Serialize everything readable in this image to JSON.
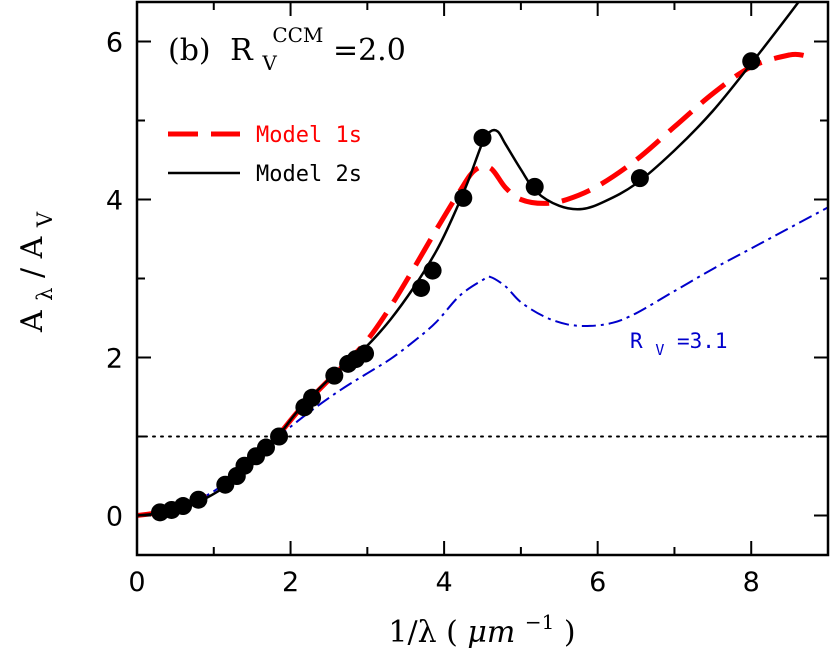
{
  "chart_data": {
    "type": "line",
    "panel_label": "(b)",
    "annotation": {
      "symbol": "R",
      "subscript": "V",
      "superscript": "CCM",
      "value_text": "=2.0"
    },
    "xlabel": {
      "prefix": "1/λ (",
      "unit_base": "μm",
      "unit_exp": "−1",
      "suffix": ")"
    },
    "ylabel": {
      "base1": "A",
      "sub1": "λ",
      "slash": "/",
      "base2": "A",
      "sub2": "V"
    },
    "xlim": [
      0,
      9
    ],
    "ylim": [
      -0.5,
      6.5
    ],
    "xticks": [
      0,
      2,
      4,
      6,
      8
    ],
    "yticks": [
      0,
      2,
      4,
      6
    ],
    "xtick_labels": [
      "0",
      "2",
      "4",
      "6",
      "8"
    ],
    "ytick_labels": [
      "0",
      "2",
      "4",
      "6"
    ],
    "grid": false,
    "legend_position": "upper-left",
    "reference_line": {
      "y": 1.0,
      "style": "dotted",
      "color": "#000000"
    },
    "series": [
      {
        "name": "Model 1s",
        "style": "dashed",
        "color": "#ff0000",
        "x": [
          0.0,
          0.3,
          0.6,
          0.9,
          1.2,
          1.5,
          1.8,
          2.1,
          2.4,
          2.7,
          3.0,
          3.3,
          3.6,
          3.9,
          4.2,
          4.4,
          4.6,
          4.8,
          5.0,
          5.3,
          5.6,
          6.0,
          6.5,
          7.0,
          7.5,
          8.0,
          8.5,
          8.7
        ],
        "y": [
          0.0,
          0.04,
          0.12,
          0.24,
          0.42,
          0.66,
          0.97,
          1.32,
          1.62,
          1.91,
          2.22,
          2.64,
          3.12,
          3.62,
          4.1,
          4.37,
          4.4,
          4.15,
          4.0,
          3.95,
          4.0,
          4.17,
          4.5,
          4.92,
          5.34,
          5.68,
          5.83,
          5.82
        ]
      },
      {
        "name": "Model 2s",
        "style": "solid",
        "color": "#000000",
        "x": [
          0.0,
          0.3,
          0.6,
          0.9,
          1.2,
          1.5,
          1.8,
          2.1,
          2.4,
          2.7,
          3.0,
          3.3,
          3.6,
          3.9,
          4.1,
          4.3,
          4.5,
          4.6,
          4.7,
          4.8,
          5.0,
          5.2,
          5.5,
          5.8,
          6.1,
          6.5,
          7.0,
          7.5,
          8.0,
          8.5,
          9.0
        ],
        "y": [
          0.0,
          0.03,
          0.1,
          0.22,
          0.4,
          0.64,
          0.96,
          1.33,
          1.63,
          1.9,
          2.15,
          2.48,
          2.88,
          3.35,
          3.75,
          4.2,
          4.72,
          4.86,
          4.86,
          4.7,
          4.38,
          4.1,
          3.92,
          3.88,
          3.98,
          4.2,
          4.62,
          5.12,
          5.72,
          6.35,
          7.0
        ]
      },
      {
        "name": "R_V=3.1",
        "label_symbol": "R",
        "label_subscript": "V",
        "label_value": "=3.1",
        "style": "dashdot",
        "color": "#0000cc",
        "x": [
          0.0,
          0.3,
          0.6,
          0.9,
          1.2,
          1.5,
          1.8,
          2.1,
          2.4,
          2.7,
          3.0,
          3.3,
          3.6,
          3.9,
          4.2,
          4.5,
          4.6,
          4.8,
          5.0,
          5.3,
          5.6,
          5.9,
          6.2,
          6.5,
          7.0,
          7.5,
          8.0,
          8.5,
          9.0
        ],
        "y": [
          0.0,
          0.04,
          0.12,
          0.25,
          0.44,
          0.67,
          0.96,
          1.2,
          1.42,
          1.62,
          1.8,
          1.98,
          2.2,
          2.45,
          2.78,
          2.98,
          3.02,
          2.9,
          2.7,
          2.52,
          2.42,
          2.4,
          2.44,
          2.56,
          2.84,
          3.12,
          3.38,
          3.64,
          3.9
        ]
      }
    ],
    "observations": {
      "name": "observed points",
      "color": "#000000",
      "x": [
        0.3,
        0.45,
        0.6,
        0.8,
        1.15,
        1.3,
        1.4,
        1.55,
        1.68,
        1.85,
        2.18,
        2.28,
        2.57,
        2.75,
        2.85,
        2.97,
        3.7,
        3.85,
        4.25,
        4.5,
        5.18,
        6.55,
        8.0
      ],
      "y": [
        0.04,
        0.07,
        0.12,
        0.2,
        0.39,
        0.5,
        0.63,
        0.75,
        0.86,
        1.0,
        1.37,
        1.49,
        1.77,
        1.92,
        1.98,
        2.05,
        2.88,
        3.1,
        4.02,
        4.78,
        4.16,
        4.27,
        5.75
      ]
    }
  }
}
